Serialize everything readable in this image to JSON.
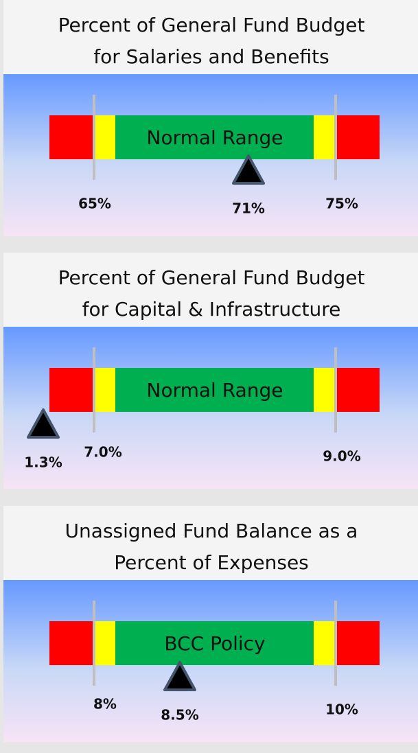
{
  "panels": [
    {
      "title": [
        "Percent of General Fund Budget",
        "for Salaries and Benefits"
      ],
      "band_label": "Normal Range",
      "low_label": "65%",
      "high_label": "75%",
      "value_label": "71%"
    },
    {
      "title": [
        "Percent of General Fund Budget",
        "for Capital & Infrastructure"
      ],
      "band_label": "Normal Range",
      "low_label": "7.0%",
      "high_label": "9.0%",
      "value_label": "1.3%"
    },
    {
      "title": [
        "Unassigned Fund Balance as a",
        "Percent of Expenses"
      ],
      "band_label": "BCC Policy",
      "low_label": "8%",
      "high_label": "10%",
      "value_label": "8.5%"
    }
  ]
}
